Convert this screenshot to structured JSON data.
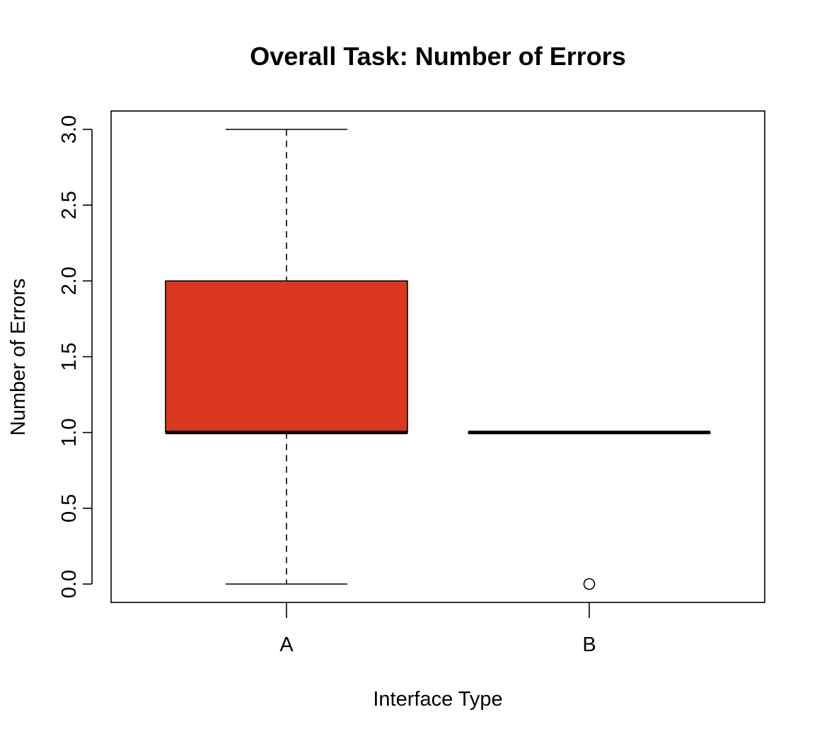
{
  "chart_data": {
    "type": "box",
    "title": "Overall Task: Number of Errors",
    "xlabel": "Interface Type",
    "ylabel": "Number of Errors",
    "categories": [
      "A",
      "B"
    ],
    "ylim": [
      -0.12,
      3.12
    ],
    "yticks": [
      0.0,
      0.5,
      1.0,
      1.5,
      2.0,
      2.5,
      3.0
    ],
    "ytick_labels": [
      "0.0",
      "0.5",
      "1.0",
      "1.5",
      "2.0",
      "2.5",
      "3.0"
    ],
    "grid": false,
    "boxes": [
      {
        "category": "A",
        "min": 0,
        "q1": 1,
        "median": 1,
        "q3": 2,
        "max": 3,
        "outliers": [],
        "color": "#d9381e"
      },
      {
        "category": "B",
        "min": 1,
        "q1": 1,
        "median": 1,
        "q3": 1,
        "max": 1,
        "outliers": [
          0
        ],
        "color": "#d9381e"
      }
    ]
  }
}
